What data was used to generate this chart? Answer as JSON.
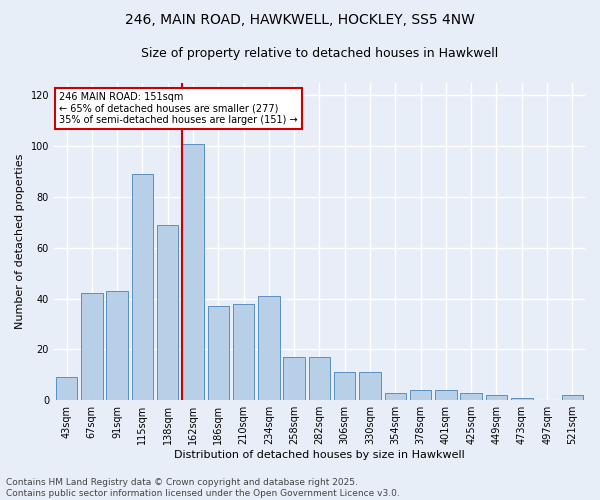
{
  "title": "246, MAIN ROAD, HAWKWELL, HOCKLEY, SS5 4NW",
  "subtitle": "Size of property relative to detached houses in Hawkwell",
  "xlabel": "Distribution of detached houses by size in Hawkwell",
  "ylabel": "Number of detached properties",
  "categories": [
    "43sqm",
    "67sqm",
    "91sqm",
    "115sqm",
    "138sqm",
    "162sqm",
    "186sqm",
    "210sqm",
    "234sqm",
    "258sqm",
    "282sqm",
    "306sqm",
    "330sqm",
    "354sqm",
    "378sqm",
    "401sqm",
    "425sqm",
    "449sqm",
    "473sqm",
    "497sqm",
    "521sqm"
  ],
  "values": [
    9,
    42,
    43,
    89,
    69,
    101,
    37,
    38,
    41,
    17,
    17,
    11,
    11,
    3,
    4,
    4,
    3,
    2,
    1,
    0,
    2
  ],
  "bar_color": "#b8cfe8",
  "bar_edge_color": "#5a8fc0",
  "red_line_index": 5,
  "annotation_text": "246 MAIN ROAD: 151sqm\n← 65% of detached houses are smaller (277)\n35% of semi-detached houses are larger (151) →",
  "annotation_box_color": "#ffffff",
  "annotation_box_edge": "#cc0000",
  "ylim": [
    0,
    125
  ],
  "yticks": [
    0,
    20,
    40,
    60,
    80,
    100,
    120
  ],
  "footnote": "Contains HM Land Registry data © Crown copyright and database right 2025.\nContains public sector information licensed under the Open Government Licence v3.0.",
  "background_color": "#e8eef8",
  "grid_color": "#ffffff",
  "title_fontsize": 10,
  "subtitle_fontsize": 9,
  "axis_label_fontsize": 8,
  "tick_fontsize": 7,
  "footnote_fontsize": 6.5,
  "annotation_fontsize": 7
}
